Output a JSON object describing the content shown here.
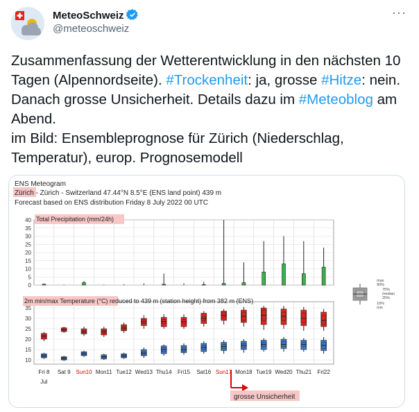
{
  "account": {
    "name": "MeteoSchweiz",
    "handle": "@meteoschweiz",
    "more_icon": "more-horizontal-icon",
    "verified_icon": "verified-badge-icon",
    "avatar_icon": "swiss-flag-cloud-logo"
  },
  "tweet": {
    "segments": [
      {
        "t": "Zusammenfassung der Wetterentwicklung in den nächsten 10 Tagen (Alpennordseite). ",
        "link": false
      },
      {
        "t": "#Trockenheit",
        "link": true
      },
      {
        "t": ": ja, grosse ",
        "link": false
      },
      {
        "t": "#Hitze",
        "link": true
      },
      {
        "t": ": nein. Danach grosse Unsicherheit. Details dazu im ",
        "link": false
      },
      {
        "t": "#Meteoblog",
        "link": true
      },
      {
        "t": " am Abend.",
        "link": false
      },
      {
        "t": "\n",
        "link": false
      },
      {
        "t": "im Bild: Ensembleprognose für Zürich (Niederschlag, Temperatur), europ. Prognosemodell",
        "link": false
      }
    ]
  },
  "colors": {
    "link": "#1d9bf0",
    "precip_bar": "#3cb04a",
    "temp_max": "#d7261e",
    "temp_min": "#3a78c8",
    "highlight": "#f7c6c6",
    "arrow": "#e00000"
  },
  "meteogram": {
    "title": "ENS Meteogram",
    "location_name": "Zürich",
    "location_rest": " - Zürich - Switzerland 47.44°N 8.5°E (ENS land point) 439 m",
    "forecast_line": "Forecast based on ENS distribution Friday 8 July 2022 00 UTC",
    "precip_panel_title": "Total Precipitation (mm/24h)",
    "temp_panel_title_highlight": "2m min/max Temperature (°C)",
    "temp_panel_title_rest": " reduced to 439 m (station height) from 382 m (ENS)",
    "days": [
      {
        "label": "Fri 8",
        "weekend": false
      },
      {
        "label": "Sat 9",
        "weekend": false
      },
      {
        "label": "Sun10",
        "weekend": true
      },
      {
        "label": "Mon11",
        "weekend": false
      },
      {
        "label": "Tue12",
        "weekend": false
      },
      {
        "label": "Wed13",
        "weekend": false
      },
      {
        "label": "Thu14",
        "weekend": false
      },
      {
        "label": "Fri15",
        "weekend": false
      },
      {
        "label": "Sat16",
        "weekend": false
      },
      {
        "label": "Sun17",
        "weekend": true
      },
      {
        "label": "Mon18",
        "weekend": false
      },
      {
        "label": "Tue19",
        "weekend": false
      },
      {
        "label": "Wed20",
        "weekend": false
      },
      {
        "label": "Thu21",
        "weekend": false
      },
      {
        "label": "Fri22",
        "weekend": false
      }
    ],
    "month_label": "Jul",
    "legend_labels": {
      "max": "max",
      "p90": "90%",
      "p75": "75%",
      "median": "median",
      "p25": "25%",
      "p10": "10%",
      "min": "min"
    },
    "annotation": "grosse Unsicherheit"
  },
  "chart_data": [
    {
      "type": "box",
      "title": "Total Precipitation (mm/24h)",
      "ylim": [
        0,
        40
      ],
      "yticks": [
        0,
        5,
        10,
        15,
        20,
        25,
        30,
        35,
        40
      ],
      "categories": [
        "Fri 8",
        "Sat 9",
        "Sun10",
        "Mon11",
        "Tue12",
        "Wed13",
        "Thu14",
        "Fri15",
        "Sat16",
        "Sun17",
        "Mon18",
        "Tue19",
        "Wed20",
        "Thu21",
        "Fri22"
      ],
      "series": [
        {
          "x": 0.5,
          "min": 0,
          "p10": 0,
          "p25": 0,
          "median": 0,
          "p75": 0.2,
          "p90": 0.5,
          "max": 1
        },
        {
          "x": 1.5,
          "min": 0,
          "p10": 0,
          "p25": 0,
          "median": 0,
          "p75": 0,
          "p90": 0,
          "max": 0.3
        },
        {
          "x": 2.5,
          "min": 0,
          "p10": 0,
          "p25": 0,
          "median": 0.2,
          "p75": 0.8,
          "p90": 1.5,
          "max": 2.5
        },
        {
          "x": 3.5,
          "min": 0,
          "p10": 0,
          "p25": 0,
          "median": 0,
          "p75": 0,
          "p90": 0,
          "max": 0.3
        },
        {
          "x": 4.5,
          "min": 0,
          "p10": 0,
          "p25": 0,
          "median": 0,
          "p75": 0,
          "p90": 0,
          "max": 0.5
        },
        {
          "x": 5.5,
          "min": 0,
          "p10": 0,
          "p25": 0,
          "median": 0,
          "p75": 0,
          "p90": 0.2,
          "max": 1
        },
        {
          "x": 6.5,
          "min": 0,
          "p10": 0,
          "p25": 0,
          "median": 0,
          "p75": 0,
          "p90": 0.5,
          "max": 7
        },
        {
          "x": 7.5,
          "min": 0,
          "p10": 0,
          "p25": 0,
          "median": 0,
          "p75": 0,
          "p90": 0,
          "max": 1
        },
        {
          "x": 8.5,
          "min": 0,
          "p10": 0,
          "p25": 0,
          "median": 0,
          "p75": 0,
          "p90": 0.3,
          "max": 2
        },
        {
          "x": 9.5,
          "min": 0,
          "p10": 0,
          "p25": 0,
          "median": 0,
          "p75": 0.2,
          "p90": 1,
          "max": 40
        },
        {
          "x": 10.5,
          "min": 0,
          "p10": 0,
          "p25": 0,
          "median": 0,
          "p75": 0.2,
          "p90": 1.5,
          "max": 14
        },
        {
          "x": 11.5,
          "min": 0,
          "p10": 0,
          "p25": 0,
          "median": 0.3,
          "p75": 2.5,
          "p90": 8,
          "max": 27
        },
        {
          "x": 12.5,
          "min": 0,
          "p10": 0,
          "p25": 0,
          "median": 0.8,
          "p75": 5.5,
          "p90": 13,
          "max": 30
        },
        {
          "x": 13.5,
          "min": 0,
          "p10": 0,
          "p25": 0,
          "median": 0.2,
          "p75": 2,
          "p90": 7,
          "max": 27
        },
        {
          "x": 14.5,
          "min": 0,
          "p10": 0,
          "p25": 0,
          "median": 1,
          "p75": 5.5,
          "p90": 11,
          "max": 23
        }
      ]
    },
    {
      "type": "box",
      "title": "2m min/max Temperature (°C)",
      "ylim": [
        8,
        38
      ],
      "yticks": [
        10,
        15,
        20,
        25,
        30,
        35
      ],
      "categories": [
        "Fri 8",
        "Sat 9",
        "Sun10",
        "Mon11",
        "Tue12",
        "Wed13",
        "Thu14",
        "Fri15",
        "Sat16",
        "Sun17",
        "Mon18",
        "Tue19",
        "Wed20",
        "Thu21",
        "Fri22"
      ],
      "series": [
        {
          "name": "max",
          "values": [
            {
              "x": 1,
              "min": 19,
              "p10": 20,
              "p25": 20.8,
              "median": 21.5,
              "p75": 22,
              "p90": 22.8,
              "max": 23.5
            },
            {
              "x": 2,
              "min": 23,
              "p10": 23.6,
              "p25": 24,
              "median": 24.5,
              "p75": 25,
              "p90": 25.5,
              "max": 26
            },
            {
              "x": 3,
              "min": 21.5,
              "p10": 22.5,
              "p25": 23,
              "median": 23.5,
              "p75": 24.2,
              "p90": 25,
              "max": 26
            },
            {
              "x": 4,
              "min": 21,
              "p10": 22,
              "p25": 22.8,
              "median": 23.5,
              "p75": 24.2,
              "p90": 25,
              "max": 26
            },
            {
              "x": 5,
              "min": 23,
              "p10": 24,
              "p25": 24.5,
              "median": 25.3,
              "p75": 26,
              "p90": 27,
              "max": 28
            },
            {
              "x": 6,
              "min": 25,
              "p10": 26.5,
              "p25": 27.5,
              "median": 28.3,
              "p75": 29.3,
              "p90": 30,
              "max": 31.5
            },
            {
              "x": 7,
              "min": 25,
              "p10": 26,
              "p25": 27.5,
              "median": 28.5,
              "p75": 29.5,
              "p90": 30.5,
              "max": 32
            },
            {
              "x": 8,
              "min": 25,
              "p10": 26,
              "p25": 27.5,
              "median": 28.5,
              "p75": 29.5,
              "p90": 30.5,
              "max": 32
            },
            {
              "x": 9,
              "min": 26,
              "p10": 27.5,
              "p25": 29,
              "median": 30,
              "p75": 31,
              "p90": 32.5,
              "max": 33.5
            },
            {
              "x": 10,
              "min": 27,
              "p10": 29,
              "p25": 30.5,
              "median": 31.5,
              "p75": 33,
              "p90": 33.5,
              "max": 34.5
            },
            {
              "x": 11,
              "min": 26,
              "p10": 28,
              "p25": 29,
              "median": 31,
              "p75": 33,
              "p90": 34,
              "max": 35.5
            },
            {
              "x": 12,
              "min": 24.5,
              "p10": 27,
              "p25": 29,
              "median": 31.5,
              "p75": 34,
              "p90": 35,
              "max": 36
            },
            {
              "x": 13,
              "min": 25,
              "p10": 27,
              "p25": 29,
              "median": 31,
              "p75": 33,
              "p90": 34.5,
              "max": 36
            },
            {
              "x": 14,
              "min": 24,
              "p10": 26.5,
              "p25": 28,
              "median": 30,
              "p75": 32.5,
              "p90": 34,
              "max": 35.5
            },
            {
              "x": 15,
              "min": 24,
              "p10": 26,
              "p25": 27,
              "median": 29,
              "p75": 31.5,
              "p90": 33,
              "max": 34.5
            }
          ]
        },
        {
          "name": "min",
          "values": [
            {
              "x": 0.5,
              "min": 10.5,
              "p10": 11,
              "p25": 11.5,
              "median": 12,
              "p75": 12.5,
              "p90": 13,
              "max": 13.5
            },
            {
              "x": 1.5,
              "min": 9.5,
              "p10": 10,
              "p25": 10.3,
              "median": 10.8,
              "p75": 11.2,
              "p90": 11.6,
              "max": 12
            },
            {
              "x": 2.5,
              "min": 11.5,
              "p10": 12,
              "p25": 12.5,
              "median": 13,
              "p75": 13.5,
              "p90": 14,
              "max": 14.5
            },
            {
              "x": 3.5,
              "min": 10,
              "p10": 10.5,
              "p25": 11,
              "median": 11.5,
              "p75": 12,
              "p90": 12.5,
              "max": 13
            },
            {
              "x": 4.5,
              "min": 10.5,
              "p10": 11,
              "p25": 11.5,
              "median": 12,
              "p75": 12.5,
              "p90": 13,
              "max": 13.5
            },
            {
              "x": 5.5,
              "min": 11,
              "p10": 12,
              "p25": 12.5,
              "median": 13.3,
              "p75": 14,
              "p90": 15,
              "max": 16
            },
            {
              "x": 6.5,
              "min": 12,
              "p10": 13,
              "p25": 14,
              "median": 15,
              "p75": 16,
              "p90": 16.8,
              "max": 17.5
            },
            {
              "x": 7.5,
              "min": 12.5,
              "p10": 13.5,
              "p25": 14.3,
              "median": 15,
              "p75": 16,
              "p90": 17,
              "max": 18
            },
            {
              "x": 8.5,
              "min": 13,
              "p10": 14,
              "p25": 15,
              "median": 16,
              "p75": 17,
              "p90": 18,
              "max": 19
            },
            {
              "x": 9.5,
              "min": 13,
              "p10": 14.5,
              "p25": 15.5,
              "median": 16.5,
              "p75": 17.5,
              "p90": 18.5,
              "max": 19.5
            },
            {
              "x": 10.5,
              "min": 13.5,
              "p10": 15,
              "p25": 16,
              "median": 17,
              "p75": 18,
              "p90": 19,
              "max": 20
            },
            {
              "x": 11.5,
              "min": 14,
              "p10": 15,
              "p25": 16.5,
              "median": 17.5,
              "p75": 18.5,
              "p90": 19.5,
              "max": 20.5
            },
            {
              "x": 12.5,
              "min": 14,
              "p10": 15.5,
              "p25": 16.5,
              "median": 17.5,
              "p75": 19,
              "p90": 20,
              "max": 21
            },
            {
              "x": 13.5,
              "min": 14,
              "p10": 15,
              "p25": 16.5,
              "median": 17.5,
              "p75": 18.5,
              "p90": 19.5,
              "max": 20.5
            },
            {
              "x": 14.5,
              "min": 13,
              "p10": 14.5,
              "p25": 15.5,
              "median": 17,
              "p75": 18.5,
              "p90": 19.5,
              "max": 21
            }
          ]
        }
      ]
    }
  ]
}
